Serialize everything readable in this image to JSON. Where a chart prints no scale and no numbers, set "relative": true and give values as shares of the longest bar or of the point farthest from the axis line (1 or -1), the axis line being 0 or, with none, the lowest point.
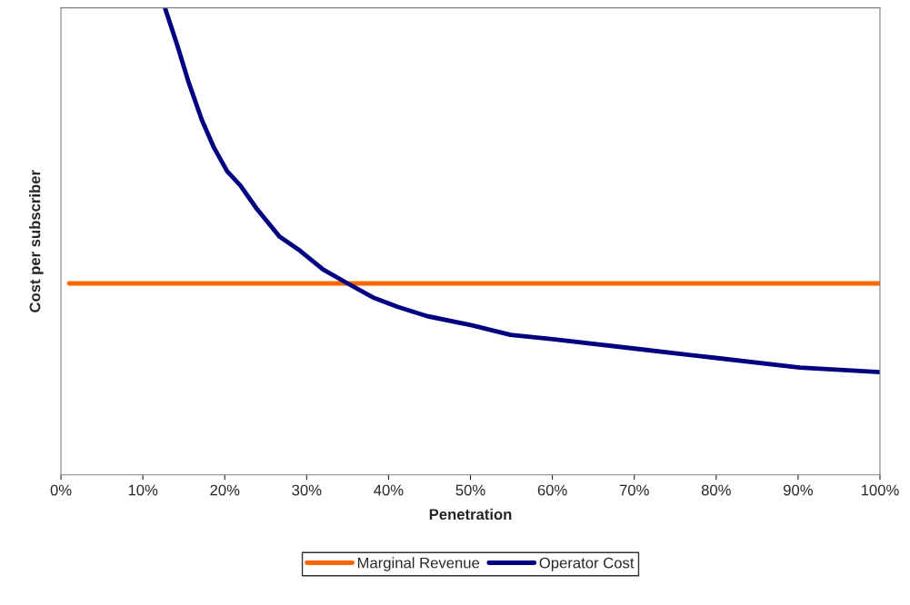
{
  "chart_data": {
    "type": "line",
    "xlabel": "Penetration",
    "ylabel": "Cost per subscriber",
    "relative": true,
    "xlim": [
      0,
      100
    ],
    "xticks": [
      {
        "value": 0,
        "label": "0%"
      },
      {
        "value": 10,
        "label": "10%"
      },
      {
        "value": 20,
        "label": "20%"
      },
      {
        "value": 30,
        "label": "30%"
      },
      {
        "value": 40,
        "label": "40%"
      },
      {
        "value": 50,
        "label": "50%"
      },
      {
        "value": 60,
        "label": "60%"
      },
      {
        "value": 70,
        "label": "70%"
      },
      {
        "value": 80,
        "label": "80%"
      },
      {
        "value": 90,
        "label": "90%"
      },
      {
        "value": 100,
        "label": "100%"
      }
    ],
    "tick_labels": "x",
    "grid": false,
    "legend": "bottom",
    "marker": "none",
    "line_style": "solid",
    "series": [
      {
        "name": "Marginal Revenue",
        "color": "#ff6600",
        "x": [
          1,
          100
        ],
        "values": [
          0.41,
          0.41
        ]
      },
      {
        "name": "Operator Cost",
        "color": "#000080",
        "x": [
          12.7,
          14.2,
          15.6,
          17.2,
          18.7,
          20.3,
          21.9,
          23.9,
          26.7,
          29.2,
          32,
          35,
          38.1,
          41.1,
          44.7,
          50.3,
          54.9,
          60.3,
          70.3,
          80.2,
          90.2,
          100
        ],
        "values": [
          1.0,
          0.92,
          0.84,
          0.76,
          0.7,
          0.65,
          0.62,
          0.57,
          0.51,
          0.48,
          0.44,
          0.41,
          0.38,
          0.36,
          0.34,
          0.32,
          0.3,
          0.29,
          0.27,
          0.25,
          0.23,
          0.22
        ]
      }
    ]
  }
}
